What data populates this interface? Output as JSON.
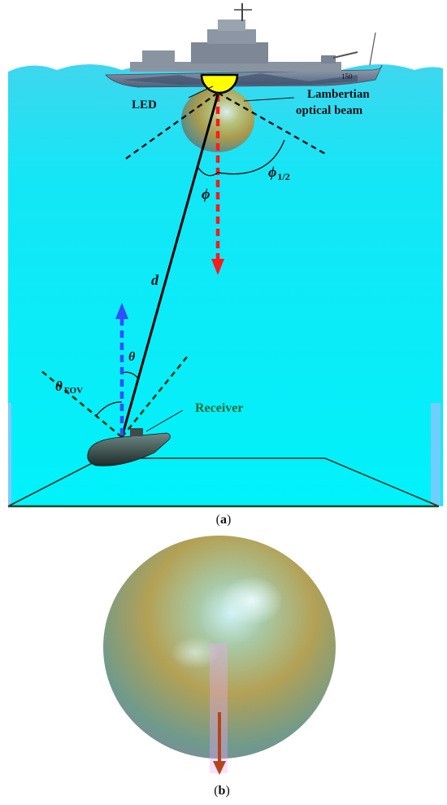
{
  "panel_a": {
    "labels": {
      "led": "LED",
      "lambertian_line1": "Lambertian",
      "lambertian_line2": "optical beam",
      "phi_half_symbol": "ϕ",
      "phi_half_subscript": "1/2",
      "phi": "ϕ",
      "distance": "d",
      "theta": "θ",
      "theta_fov_symbol": "θ",
      "theta_fov_subscript": "FOV",
      "receiver": "Receiver",
      "ship_hull_number": "150"
    },
    "caption": {
      "open": "(",
      "letter": "a",
      "close": ")"
    },
    "colors": {
      "water": "#00f0f8",
      "led": "#ffff00",
      "beam_axis": "#ff1a1a",
      "receiver_axis": "#3050ff",
      "fov_lines": "#0a3a1a",
      "link_line": "#000000"
    }
  },
  "panel_b": {
    "caption": {
      "open": "(",
      "letter": "b",
      "close": ")"
    }
  }
}
